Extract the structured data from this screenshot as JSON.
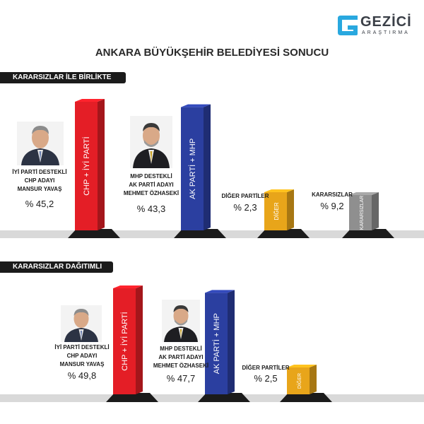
{
  "brand": {
    "name": "GEZİCİ",
    "sub": "ARAŞTIRMA"
  },
  "title": "ANKARA BÜYÜKŞEHİR BELEDİYESİ SONUCU",
  "colors": {
    "chp": "#e41e26",
    "akp": "#2b3fa0",
    "other": "#e8a51a",
    "undecided": "#8f8f8f"
  },
  "chart_data": [
    {
      "type": "bar",
      "title": "KARARSIZLAR İLE BİRLİKTE",
      "categories": [
        "CHP + İYİ PARTİ",
        "AK PARTİ + MHP",
        "DİĞER",
        "KARARSIZLAR"
      ],
      "values": [
        45.2,
        43.3,
        2.3,
        9.2
      ],
      "labels": [
        {
          "lines": [
            "İYİ PARTİ DESTEKLİ",
            "CHP ADAYI",
            "MANSUR YAVAŞ"
          ],
          "pct": "% 45,2"
        },
        {
          "lines": [
            "MHP DESTEKLİ",
            "AK PARTİ ADAYI",
            "MEHMET ÖZHASEKİ"
          ],
          "pct": "% 43,3"
        },
        {
          "lines": [
            "DİĞER PARTİLER"
          ],
          "pct": "% 2,3"
        },
        {
          "lines": [
            "KARARSIZLAR"
          ],
          "pct": "% 9,2"
        }
      ]
    },
    {
      "type": "bar",
      "title": "KARARSIZLAR DAĞITIMLI",
      "categories": [
        "CHP + İYİ PARTİ",
        "AK PARTİ + MHP",
        "DİĞER"
      ],
      "values": [
        49.8,
        47.7,
        2.5
      ],
      "labels": [
        {
          "lines": [
            "İYİ PARTİ DESTEKLİ",
            "CHP ADAYI",
            "MANSUR YAVAŞ"
          ],
          "pct": "% 49,8"
        },
        {
          "lines": [
            "MHP DESTEKLİ",
            "AK PARTİ ADAYI",
            "MEHMET ÖZHASEKİ"
          ],
          "pct": "% 47,7"
        },
        {
          "lines": [
            "DİĞER PARTİLER"
          ],
          "pct": "% 2,5"
        }
      ]
    }
  ]
}
